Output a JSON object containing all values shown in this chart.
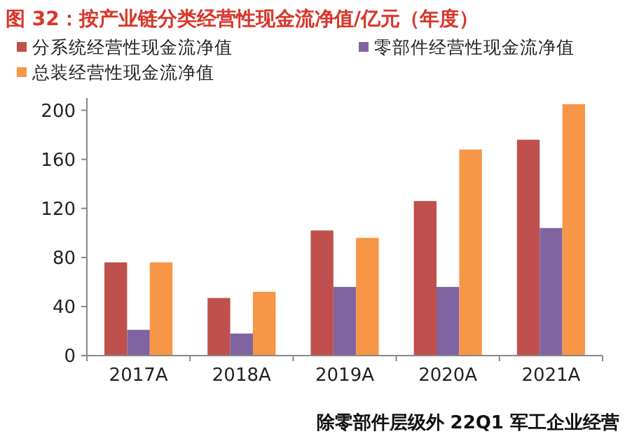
{
  "chart_data": {
    "type": "bar",
    "title": "图 32：按产业链分类经营性现金流净值/亿元（年度）",
    "categories": [
      "2017A",
      "2018A",
      "2019A",
      "2020A",
      "2021A"
    ],
    "series": [
      {
        "name": "分系统经营性现金流净值",
        "color": "#c0504d",
        "values": [
          76,
          47,
          102,
          126,
          176
        ]
      },
      {
        "name": "零部件经营性现金流净值",
        "color": "#8064a2",
        "values": [
          21,
          18,
          56,
          56,
          104
        ]
      },
      {
        "name": "总装经营性现金流净值",
        "color": "#f79646",
        "values": [
          76,
          52,
          96,
          168,
          205
        ]
      }
    ],
    "ylim": [
      0,
      210
    ],
    "yticks": [
      0,
      40,
      80,
      120,
      160,
      200
    ],
    "grid": false,
    "legend": "top",
    "annotations": [
      "除零部件层级外 22Q1 军工企业经营"
    ]
  }
}
